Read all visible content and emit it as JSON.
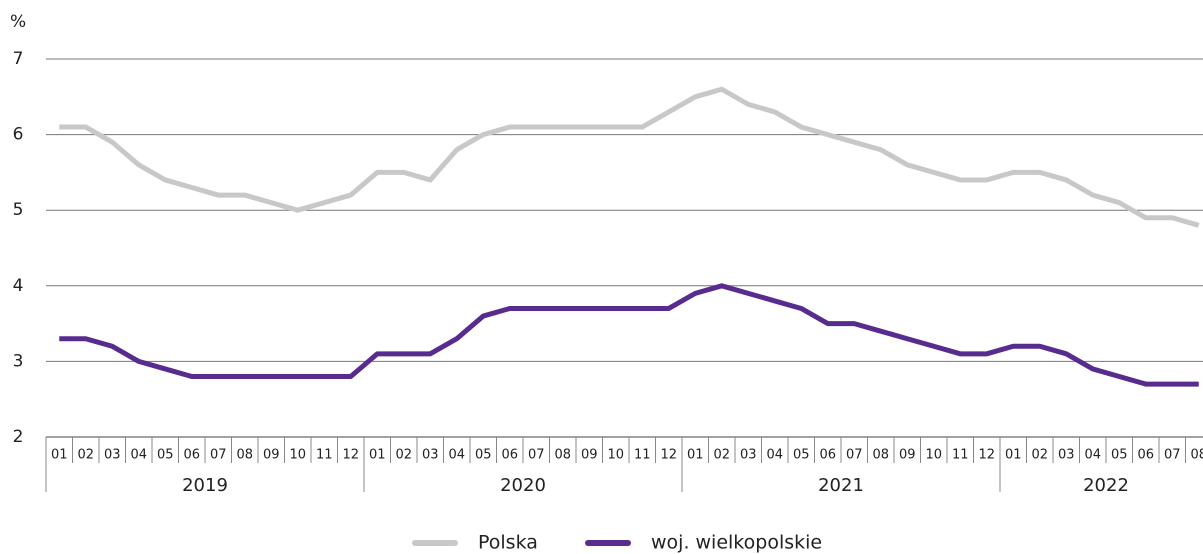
{
  "chart_data": {
    "type": "line",
    "y_label": "%",
    "categories": [
      "01",
      "02",
      "03",
      "04",
      "05",
      "06",
      "07",
      "08",
      "09",
      "10",
      "11",
      "12",
      "01",
      "02",
      "03",
      "04",
      "05",
      "06",
      "07",
      "08",
      "09",
      "10",
      "11",
      "12",
      "01",
      "02",
      "03",
      "04",
      "05",
      "06",
      "07",
      "08",
      "09",
      "10",
      "11",
      "12",
      "01",
      "02",
      "03",
      "04",
      "05",
      "06",
      "07",
      "08"
    ],
    "groups": [
      "2019",
      "2020",
      "2021",
      "2022"
    ],
    "series": [
      {
        "name": "Polska",
        "color": "#c8c8c8",
        "values": [
          6.1,
          6.1,
          5.9,
          5.6,
          5.4,
          5.3,
          5.2,
          5.2,
          5.1,
          5.0,
          5.1,
          5.2,
          5.5,
          5.5,
          5.4,
          5.8,
          6.0,
          6.1,
          6.1,
          6.1,
          6.1,
          6.1,
          6.1,
          6.3,
          6.5,
          6.6,
          6.4,
          6.3,
          6.1,
          6.0,
          5.9,
          5.8,
          5.6,
          5.5,
          5.4,
          5.4,
          5.5,
          5.5,
          5.4,
          5.2,
          5.1,
          4.9,
          4.9,
          4.8
        ]
      },
      {
        "name": "woj. wielkopolskie",
        "color": "#582c8f",
        "values": [
          3.3,
          3.3,
          3.2,
          3.0,
          2.9,
          2.8,
          2.8,
          2.8,
          2.8,
          2.8,
          2.8,
          2.8,
          3.1,
          3.1,
          3.1,
          3.3,
          3.6,
          3.7,
          3.7,
          3.7,
          3.7,
          3.7,
          3.7,
          3.7,
          3.9,
          4.0,
          3.9,
          3.8,
          3.7,
          3.5,
          3.5,
          3.4,
          3.3,
          3.2,
          3.1,
          3.1,
          3.2,
          3.2,
          3.1,
          2.9,
          2.8,
          2.7,
          2.7,
          2.7
        ]
      }
    ],
    "ylim": [
      2,
      7
    ],
    "yticks": [
      2,
      3,
      4,
      5,
      6,
      7
    ],
    "grid": true,
    "legend": "bottom"
  }
}
